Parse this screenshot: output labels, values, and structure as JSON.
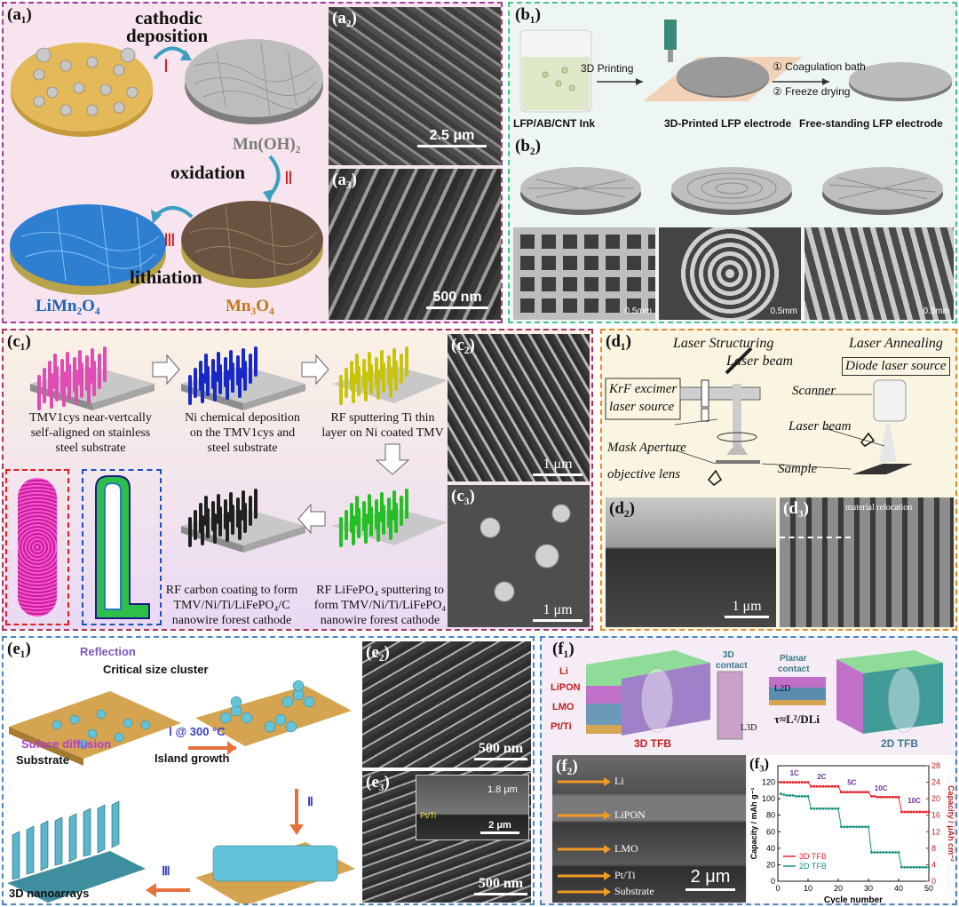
{
  "colors": {
    "a_border": "#9b3d98",
    "b_border": "#47c28b",
    "c_border": "#a8325a",
    "d_border": "#e08a2e",
    "e_border": "#4a86c5",
    "f_border": "#4a86c5",
    "steel": "#b9bcc1",
    "pink": "#e04bb4",
    "blue": "#1628c8",
    "yellow": "#c8c40a",
    "green": "#22c022",
    "black": "#202020",
    "teal": "#63c3d8",
    "red_series": "#e8202a",
    "teal_series": "#16907f"
  },
  "panel_a": {
    "label_a1": "(a₁)",
    "label_a2": "(a₂)",
    "label_a3": "(a₃)",
    "step1_title": "cathodic",
    "step1_title2": "deposition",
    "step1_roman": "Ⅰ",
    "mnoh2": "Mn(OH)₂",
    "step2_title": "oxidation",
    "step2_roman": "Ⅱ",
    "step3_roman": "Ⅲ",
    "step3_title": "lithiation",
    "limn2o4": "LiMn₂O₄",
    "mn3o4": "Mn₃O₄",
    "scale_a2": "2.5 μm",
    "scale_a3": "500 nm"
  },
  "panel_b": {
    "label_b1": "(b₁)",
    "label_b2": "(b₂)",
    "ink": "LFP/AB/CNT Ink",
    "printing": "3D Printing",
    "printed": "3D-Printed LFP electrode",
    "coag": "① Coagulation bath",
    "freeze": "② Freeze drying",
    "freestanding": "Free-standing LFP electrode",
    "scale": [
      "0.5mm",
      "0.5mm",
      "0.5mm"
    ]
  },
  "panel_c": {
    "label_c1": "(c₁)",
    "label_c2": "(c₂)",
    "label_c3": "(c₃)",
    "step1": [
      "TMV1cys near-vertcally",
      "self-aligned on stainless",
      "steel substrate"
    ],
    "step2": [
      "Ni chemical deposition",
      "on the TMV1cys and",
      "steel substrate"
    ],
    "step3": [
      "RF sputtering Ti thin",
      "layer on Ni coated TMV"
    ],
    "step4": [
      "RF LiFePO₄ sputtering to",
      "form TMV/Ni/Ti/LiFePO₄",
      "nanowire forest cathode"
    ],
    "step5": [
      "RF carbon coating to form",
      "TMV/Ni/Ti/LiFePO₄/C",
      "nanowire forest cathode"
    ],
    "scale_c2": "1 μm",
    "scale_c3": "1 μm"
  },
  "panel_d": {
    "label_d1": "(d₁)",
    "label_d2": "(d₂)",
    "label_d3": "(d₃)",
    "laser_structuring": "Laser Structuring",
    "laser_beam": "Laser beam",
    "krf": "KrF excimer",
    "krf2": "laser source",
    "mask": "Mask Aperture",
    "objective": "objective lens",
    "laser_annealing": "Laser Annealing",
    "diode": "Diode laser source",
    "scanner": "Scanner",
    "laser_beam2": "Laser beam",
    "sample": "Sample",
    "relocation": "material relocation",
    "scale_d2": "1 μm"
  },
  "panel_e": {
    "label_e1": "(e₁)",
    "label_e2": "(e₂)",
    "label_e3": "(e₃)",
    "reflection": "Reflection",
    "critical": "Critical size cluster",
    "surface": "Suface diffusion",
    "step1": "Ⅰ @ 300 °C",
    "island": "Island growth",
    "substrate": "Substrate",
    "step2": "Ⅱ",
    "step3": "Ⅲ",
    "nanoarrays": "3D nanoarrays",
    "scale_e2": "500 nm",
    "scale_e3": "500 nm",
    "inset_thick": "1.8 μm",
    "inset_pt": "Pt/Ti",
    "inset_scale": "2 μm"
  },
  "panel_f": {
    "label_f1": "(f₁)",
    "label_f2": "(f₂)",
    "label_f3": "(f₃)",
    "layers": [
      "Li",
      "LiPON",
      "LMO",
      "Pt/Ti"
    ],
    "tfb3d": "3D TFB",
    "tfb2d": "2D TFB",
    "contact3d": "3D",
    "contact3d2": "contact",
    "planar": "Planar",
    "planar2": "contact",
    "l2d": "L2D",
    "l3d": "L3D",
    "tau": "τ≈L²/DLi",
    "sem_layers": [
      "Li",
      "LiPON",
      "LMO",
      "Pt/Ti",
      "Substrate"
    ],
    "scale_f2": "2 μm"
  },
  "chart_data": {
    "type": "line",
    "xlabel": "Cycle number",
    "ylabel": "Capacity / mAh g⁻¹",
    "ylabel_right": "Capacity / μAh cm⁻²",
    "xlim": [
      0,
      50
    ],
    "ylim": [
      0,
      140
    ],
    "ylim_right": [
      0,
      28
    ],
    "xticks": [
      0,
      10,
      20,
      30,
      40,
      50
    ],
    "yticks": [
      0,
      20,
      40,
      60,
      80,
      100,
      120
    ],
    "yticks_right": [
      0,
      4,
      8,
      12,
      16,
      20,
      24,
      28
    ],
    "rate_labels": [
      {
        "text": "1C",
        "x": 4,
        "y": 128
      },
      {
        "text": "2C",
        "x": 13,
        "y": 124
      },
      {
        "text": "5C",
        "x": 23,
        "y": 117
      },
      {
        "text": "10C",
        "x": 32,
        "y": 110
      },
      {
        "text": "10C",
        "x": 43,
        "y": 95
      }
    ],
    "series": [
      {
        "name": "3D TFB",
        "color": "#e8202a",
        "x": [
          1,
          2,
          3,
          4,
          5,
          6,
          7,
          8,
          9,
          10,
          11,
          12,
          13,
          14,
          15,
          16,
          17,
          18,
          19,
          20,
          21,
          22,
          23,
          24,
          25,
          26,
          27,
          28,
          29,
          30,
          31,
          32,
          33,
          34,
          35,
          36,
          37,
          38,
          39,
          40,
          41,
          42,
          43,
          44,
          45,
          46,
          47,
          48,
          49,
          50
        ],
        "values": [
          120,
          120,
          120,
          120,
          120,
          120,
          120,
          120,
          120,
          120,
          115,
          115,
          115,
          115,
          115,
          115,
          115,
          115,
          115,
          115,
          108,
          108,
          108,
          108,
          108,
          108,
          108,
          108,
          108,
          108,
          103,
          103,
          102,
          102,
          102,
          102,
          102,
          102,
          102,
          102,
          84,
          84,
          84,
          84,
          84,
          84,
          84,
          84,
          84,
          84
        ]
      },
      {
        "name": "2D TFB",
        "color": "#16907f",
        "x": [
          1,
          2,
          3,
          4,
          5,
          6,
          7,
          8,
          9,
          10,
          11,
          12,
          13,
          14,
          15,
          16,
          17,
          18,
          19,
          20,
          21,
          22,
          23,
          24,
          25,
          26,
          27,
          28,
          29,
          30,
          31,
          32,
          33,
          34,
          35,
          36,
          37,
          38,
          39,
          40,
          41,
          42,
          43,
          44,
          45,
          46,
          47,
          48,
          49,
          50
        ],
        "values": [
          106,
          105,
          104,
          104,
          104,
          103,
          103,
          103,
          103,
          103,
          88,
          88,
          88,
          88,
          88,
          88,
          88,
          88,
          88,
          88,
          66,
          66,
          66,
          66,
          66,
          66,
          66,
          66,
          66,
          66,
          35,
          35,
          35,
          35,
          35,
          35,
          35,
          35,
          35,
          35,
          17,
          17,
          17,
          17,
          17,
          17,
          17,
          17,
          17,
          17
        ]
      }
    ]
  }
}
